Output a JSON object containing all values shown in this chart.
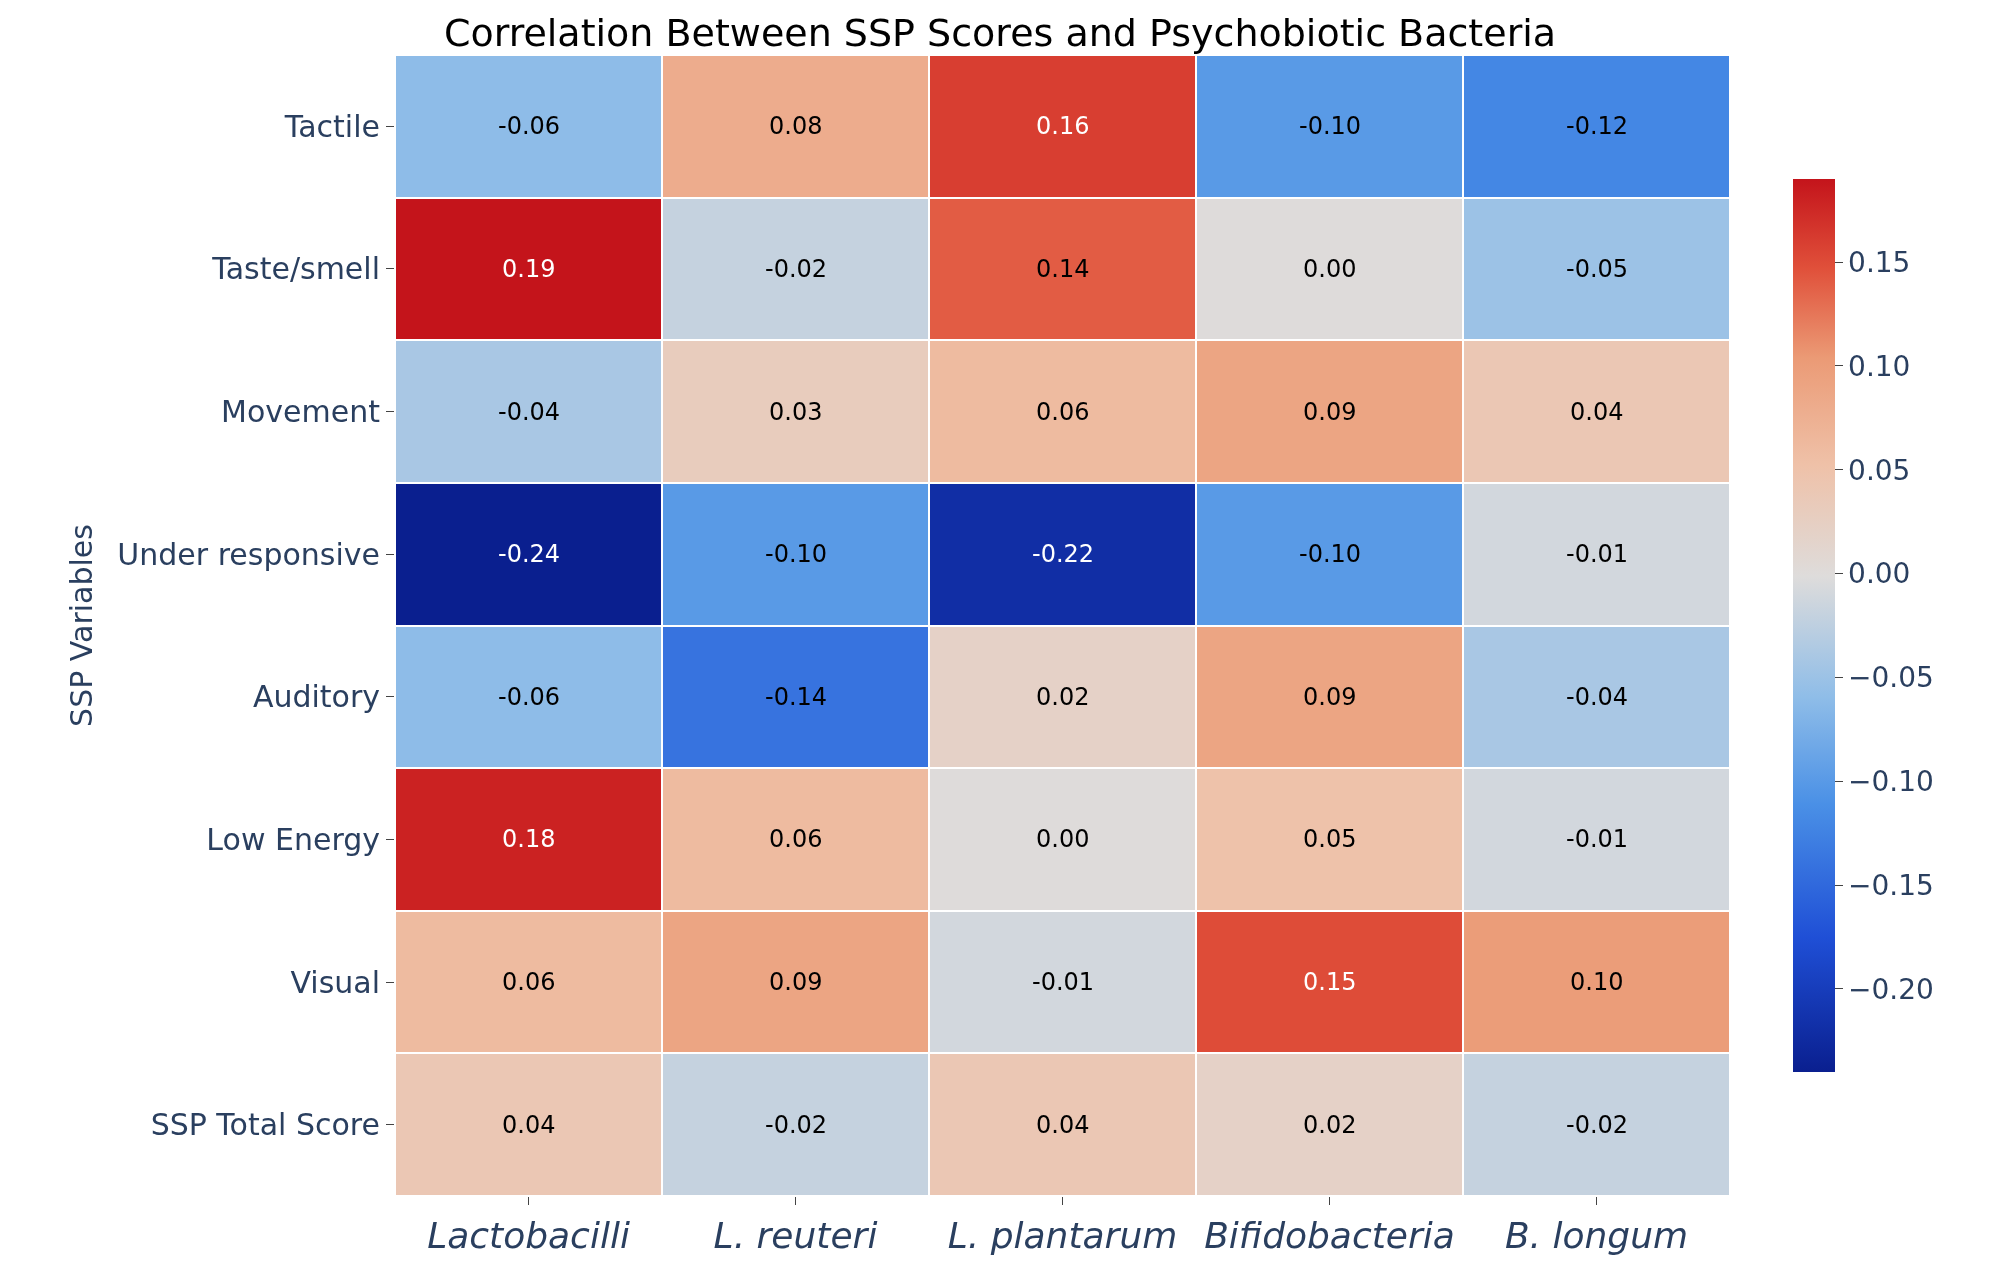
{
  "chart_data": {
    "type": "heatmap",
    "title": "Correlation Between SSP Scores and Psychobiotic Bacteria",
    "ylabel": "SSP Variables",
    "categories": [
      "Lactobacilli",
      "L. reuteri",
      "L. plantarum",
      "Bifidobacteria",
      "B. longum"
    ],
    "y_categories": [
      "Tactile",
      "Taste/smell",
      "Movement",
      "Under responsive",
      "Auditory",
      "Low Energy",
      "Visual",
      "SSP Total Score"
    ],
    "cells": [
      [
        -0.06,
        0.08,
        0.16,
        -0.1,
        -0.12
      ],
      [
        0.19,
        -0.02,
        0.14,
        0.0,
        -0.05
      ],
      [
        -0.04,
        0.03,
        0.06,
        0.09,
        0.04
      ],
      [
        -0.24,
        -0.1,
        -0.22,
        -0.1,
        -0.01
      ],
      [
        -0.06,
        -0.14,
        0.02,
        0.09,
        -0.04
      ],
      [
        0.18,
        0.06,
        0.0,
        0.05,
        -0.01
      ],
      [
        0.06,
        0.09,
        -0.01,
        0.15,
        0.1
      ],
      [
        0.04,
        -0.02,
        0.04,
        0.02,
        -0.02
      ]
    ],
    "cell_labels": [
      [
        "-0.06",
        "0.08",
        "0.16",
        "-0.10",
        "-0.12"
      ],
      [
        "0.19",
        "-0.02",
        "0.14",
        "0.00",
        "-0.05"
      ],
      [
        "-0.04",
        "0.03",
        "0.06",
        "0.09",
        "0.04"
      ],
      [
        "-0.24",
        "-0.10",
        "-0.22",
        "-0.10",
        "-0.01"
      ],
      [
        "-0.06",
        "-0.14",
        "0.02",
        "0.09",
        "-0.04"
      ],
      [
        "0.18",
        "0.06",
        "0.00",
        "0.05",
        "-0.01"
      ],
      [
        "0.06",
        "0.09",
        "-0.01",
        "0.15",
        "0.10"
      ],
      [
        "0.04",
        "-0.02",
        "0.04",
        "0.02",
        "-0.02"
      ]
    ],
    "clim": [
      -0.24,
      0.19
    ],
    "cticks": [
      {
        "value": -0.2,
        "label": "−0.20"
      },
      {
        "value": -0.15,
        "label": "−0.15"
      },
      {
        "value": -0.1,
        "label": "−0.10"
      },
      {
        "value": -0.05,
        "label": "−0.05"
      },
      {
        "value": 0,
        "label": "0.00"
      },
      {
        "value": 0.05,
        "label": "0.05"
      },
      {
        "value": 0.1,
        "label": "0.10"
      },
      {
        "value": 0.15,
        "label": "0.15"
      }
    ]
  }
}
